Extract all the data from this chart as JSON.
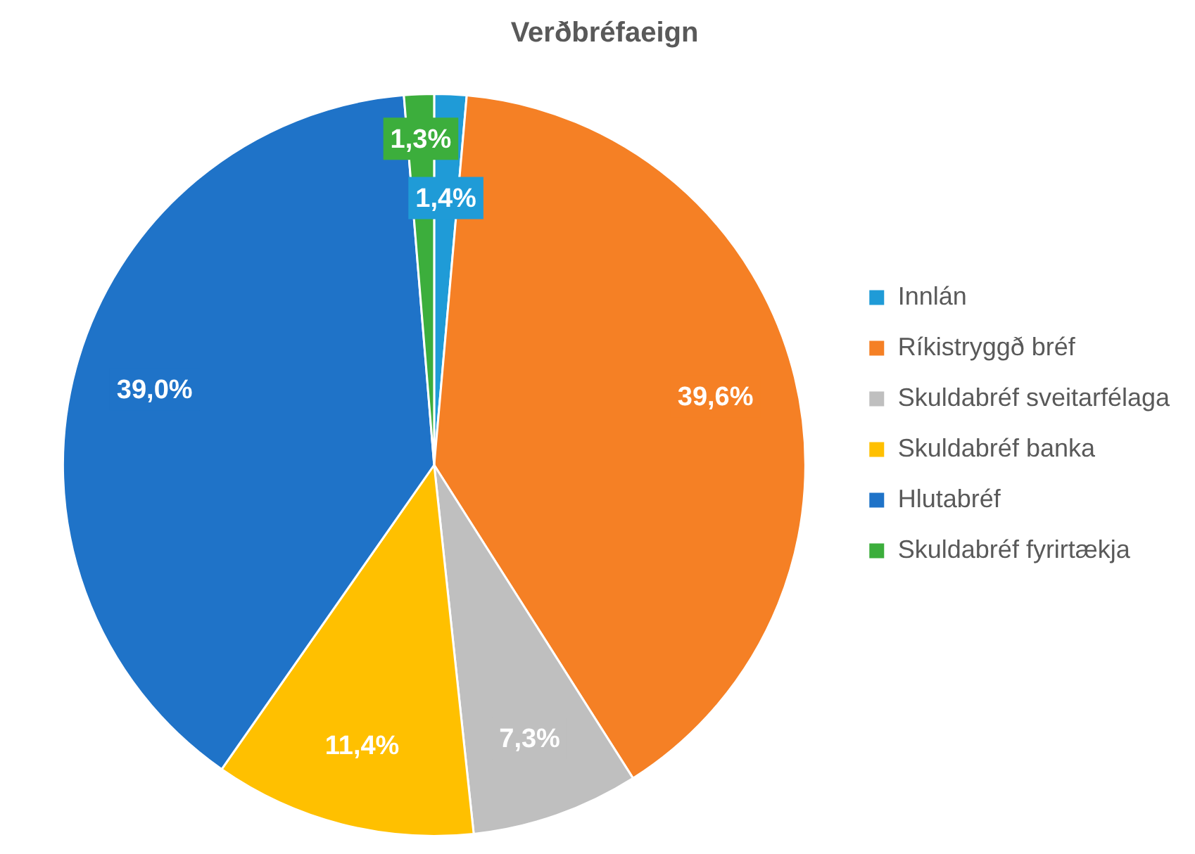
{
  "chart_data": {
    "type": "pie",
    "title": "Verðbréfaeign",
    "categories": [
      "Innlán",
      "Ríkistryggð bréf",
      "Skuldabréf sveitarfélaga",
      "Skuldabréf banka",
      "Hlutabréf",
      "Skuldabréf fyrirtækja"
    ],
    "values": [
      1.4,
      39.6,
      7.3,
      11.4,
      39.0,
      1.3
    ],
    "colors": [
      "#1f9bd7",
      "#f58025",
      "#bfbfbf",
      "#ffc000",
      "#1f73c8",
      "#3cae3c"
    ],
    "value_labels": [
      "1,4%",
      "39,6%",
      "7,3%",
      "11,4%",
      "39,0%",
      "1,3%"
    ],
    "legend": "right"
  }
}
